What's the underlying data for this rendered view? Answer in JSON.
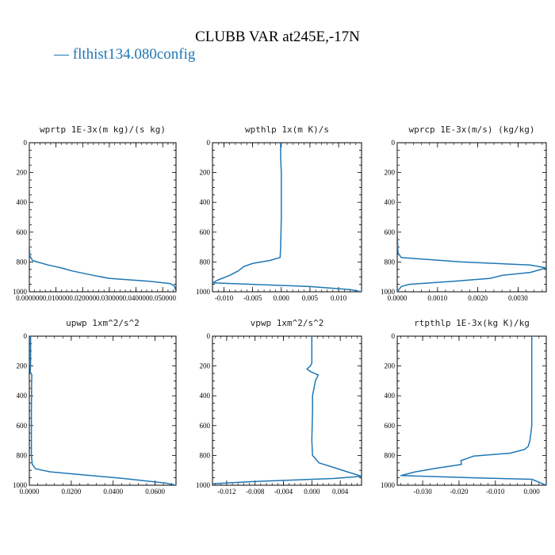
{
  "title": "CLUBB VAR at245E,-17N",
  "legend": {
    "label": "— flthist134.080config",
    "color": "#1f77b4"
  },
  "chart_data": [
    {
      "type": "line",
      "title": "wprtp  1E-3x(m kg)/(s kg)",
      "xlim": [
        0,
        0.055
      ],
      "ylim": [
        1000,
        0
      ],
      "xticks": [
        0.0,
        0.01,
        0.02,
        0.03,
        0.04,
        0.05
      ],
      "xticklabels": [
        "0.000000",
        "0.010000",
        "0.020000",
        "0.030000",
        "0.040000",
        "0.050000"
      ],
      "yticks": [
        0,
        200,
        400,
        600,
        800,
        1000
      ],
      "series": [
        {
          "color": "#1f77b4",
          "x": [
            0,
            0,
            0,
            0.0002,
            0.0012,
            0.003,
            0.007,
            0.012,
            0.016,
            0.024,
            0.03,
            0.045,
            0.053,
            0.0545,
            0.055
          ],
          "y": [
            0,
            200,
            700,
            760,
            790,
            800,
            820,
            840,
            860,
            890,
            910,
            930,
            945,
            965,
            1000
          ]
        }
      ]
    },
    {
      "type": "line",
      "title": "wpthlp  1x(m K)/s",
      "xlim": [
        -0.012,
        0.014
      ],
      "ylim": [
        1000,
        0
      ],
      "xticks": [
        -0.01,
        -0.005,
        0.0,
        0.005,
        0.01
      ],
      "xticklabels": [
        "-0.010",
        "-0.005",
        "0.000",
        "0.005",
        "0.010"
      ],
      "yticks": [
        0,
        200,
        400,
        600,
        800,
        1000
      ],
      "series": [
        {
          "color": "#1f77b4",
          "x": [
            -0.0001,
            -0.0001,
            0.0,
            0.0,
            -0.0001,
            -0.0002,
            -0.002,
            -0.005,
            -0.0065,
            -0.0075,
            -0.009,
            -0.011,
            -0.012,
            0.005,
            0.012,
            0.014
          ],
          "y": [
            0,
            100,
            200,
            500,
            700,
            770,
            790,
            810,
            830,
            860,
            890,
            920,
            940,
            965,
            985,
            1000
          ]
        }
      ]
    },
    {
      "type": "line",
      "title": "wprcp  1E-3x(m/s) (kg/kg)",
      "xlim": [
        0,
        0.0037
      ],
      "ylim": [
        1000,
        0
      ],
      "xticks": [
        0.0,
        0.001,
        0.002,
        0.003
      ],
      "xticklabels": [
        "0.0000",
        "0.0010",
        "0.0020",
        "0.0030"
      ],
      "yticks": [
        0,
        200,
        400,
        600,
        800,
        1000
      ],
      "series": [
        {
          "color": "#1f77b4",
          "x": [
            0,
            0,
            2e-05,
            0.0001,
            0.0016,
            0.0033,
            0.0037,
            0.0033,
            0.0026,
            0.0023,
            0.0014,
            0.0003,
            0.0001,
            0
          ],
          "y": [
            0,
            600,
            740,
            770,
            800,
            820,
            840,
            870,
            890,
            910,
            930,
            950,
            965,
            1000
          ]
        }
      ]
    },
    {
      "type": "line",
      "title": "upwp  1xm^2/s^2",
      "xlim": [
        0,
        0.07
      ],
      "ylim": [
        1000,
        0
      ],
      "xticks": [
        0.0,
        0.02,
        0.04,
        0.06
      ],
      "xticklabels": [
        "0.0000",
        "0.0200",
        "0.0400",
        "0.0600"
      ],
      "yticks": [
        0,
        200,
        400,
        600,
        800,
        1000
      ],
      "series": [
        {
          "color": "#1f77b4",
          "x": [
            0.0006,
            0.0006,
            0.0004,
            0.0012,
            0.0011,
            0.001,
            0.001,
            0.0014,
            0.003,
            0.01,
            0.025,
            0.045,
            0.065,
            0.07
          ],
          "y": [
            0,
            200,
            240,
            260,
            300,
            500,
            800,
            860,
            890,
            910,
            930,
            955,
            985,
            1000
          ]
        }
      ]
    },
    {
      "type": "line",
      "title": "vpwp  1xm^2/s^2",
      "xlim": [
        -0.014,
        0.007
      ],
      "ylim": [
        1000,
        0
      ],
      "xticks": [
        -0.012,
        -0.008,
        -0.004,
        0.0,
        0.004
      ],
      "xticklabels": [
        "-0.012",
        "-0.008",
        "-0.004",
        "0.000",
        "0.004"
      ],
      "yticks": [
        0,
        200,
        400,
        600,
        800,
        1000
      ],
      "series": [
        {
          "color": "#1f77b4",
          "x": [
            0.0,
            0.0,
            -0.0002,
            -0.0007,
            -0.0001,
            0.0009,
            0.0005,
            0.0003,
            0.0001,
            0.0001,
            0.0,
            0.0001,
            0.001,
            0.003,
            0.005,
            0.007,
            0.003,
            -0.008,
            -0.014
          ],
          "y": [
            0,
            180,
            200,
            220,
            240,
            260,
            300,
            350,
            400,
            500,
            700,
            800,
            850,
            880,
            910,
            940,
            955,
            975,
            990
          ]
        }
      ]
    },
    {
      "type": "line",
      "title": "rtpthlp  1E-3x(kg K)/kg",
      "xlim": [
        -0.037,
        0.004
      ],
      "ylim": [
        1000,
        0
      ],
      "xticks": [
        -0.03,
        -0.02,
        -0.01,
        0.0
      ],
      "xticklabels": [
        "-0.030",
        "-0.020",
        "-0.010",
        "0.000"
      ],
      "yticks": [
        0,
        200,
        400,
        600,
        800,
        1000
      ],
      "series": [
        {
          "color": "#1f77b4",
          "x": [
            0.0,
            0.0,
            -0.0005,
            -0.001,
            -0.002,
            -0.006,
            -0.016,
            -0.0195,
            -0.0193,
            -0.026,
            -0.032,
            -0.036,
            -0.016,
            0.0,
            0.002,
            0.004
          ],
          "y": [
            0,
            600,
            700,
            740,
            760,
            785,
            805,
            835,
            860,
            885,
            910,
            935,
            950,
            960,
            980,
            1000
          ]
        }
      ]
    }
  ]
}
